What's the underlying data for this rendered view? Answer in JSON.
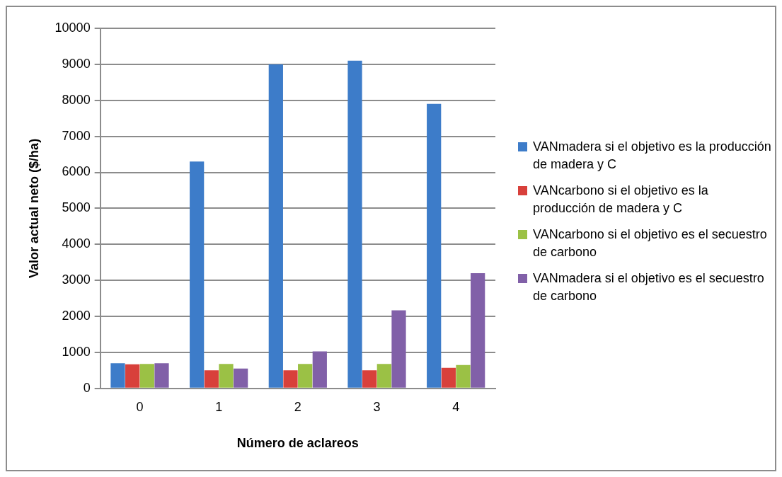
{
  "chart_data": {
    "type": "bar",
    "xlabel": "Número de aclareos",
    "ylabel": "Valor actual neto ($/ha)",
    "categories": [
      "0",
      "1",
      "2",
      "3",
      "4"
    ],
    "series": [
      {
        "name": "VANmadera si el objetivo es la producción de madera y C",
        "color": "#3d7cc9",
        "values": [
          700,
          6300,
          9000,
          9100,
          7900
        ]
      },
      {
        "name": "VANcarbono si el objetivo es la producción de madera y C",
        "color": "#d8403b",
        "values": [
          670,
          500,
          500,
          500,
          570
        ]
      },
      {
        "name": "VANcarbono si el objetivo es el secuestro de carbono",
        "color": "#9bc145",
        "values": [
          680,
          680,
          680,
          680,
          650
        ]
      },
      {
        "name": "VANmadera si el objetivo es el secuestro de carbono",
        "color": "#8160a8",
        "values": [
          700,
          550,
          1030,
          2170,
          3200
        ]
      }
    ],
    "ylim": [
      0,
      10000
    ],
    "yticks": [
      0,
      1000,
      2000,
      3000,
      4000,
      5000,
      6000,
      7000,
      8000,
      9000,
      10000
    ],
    "grid": "y",
    "legend": "right"
  }
}
